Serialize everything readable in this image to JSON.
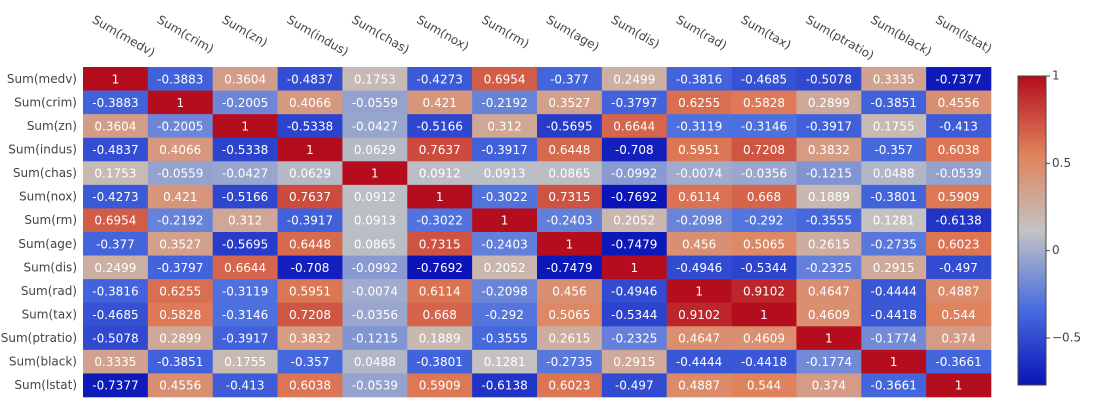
{
  "chart_data": {
    "type": "heatmap",
    "title": "",
    "xlabel": "",
    "ylabel": "",
    "x_categories": [
      "Sum(medv)",
      "Sum(crim)",
      "Sum(zn)",
      "Sum(indus)",
      "Sum(chas)",
      "Sum(nox)",
      "Sum(rm)",
      "Sum(age)",
      "Sum(dis)",
      "Sum(rad)",
      "Sum(tax)",
      "Sum(ptratio)",
      "Sum(black)",
      "Sum(lstat)"
    ],
    "y_categories": [
      "Sum(medv)",
      "Sum(crim)",
      "Sum(zn)",
      "Sum(indus)",
      "Sum(chas)",
      "Sum(nox)",
      "Sum(rm)",
      "Sum(age)",
      "Sum(dis)",
      "Sum(rad)",
      "Sum(tax)",
      "Sum(ptratio)",
      "Sum(black)",
      "Sum(lstat)"
    ],
    "values": [
      [
        1,
        -0.3883,
        0.3604,
        -0.4837,
        0.1753,
        -0.4273,
        0.6954,
        -0.377,
        0.2499,
        -0.3816,
        -0.4685,
        -0.5078,
        0.3335,
        -0.7377
      ],
      [
        -0.3883,
        1,
        -0.2005,
        0.4066,
        -0.0559,
        0.421,
        -0.2192,
        0.3527,
        -0.3797,
        0.6255,
        0.5828,
        0.2899,
        -0.3851,
        0.4556
      ],
      [
        0.3604,
        -0.2005,
        1,
        -0.5338,
        -0.0427,
        -0.5166,
        0.312,
        -0.5695,
        0.6644,
        -0.3119,
        -0.3146,
        -0.3917,
        0.1755,
        -0.413
      ],
      [
        -0.4837,
        0.4066,
        -0.5338,
        1,
        0.0629,
        0.7637,
        -0.3917,
        0.6448,
        -0.708,
        0.5951,
        0.7208,
        0.3832,
        -0.357,
        0.6038
      ],
      [
        0.1753,
        -0.0559,
        -0.0427,
        0.0629,
        1,
        0.0912,
        0.0913,
        0.0865,
        -0.0992,
        -0.0074,
        -0.0356,
        -0.1215,
        0.0488,
        -0.0539
      ],
      [
        -0.4273,
        0.421,
        -0.5166,
        0.7637,
        0.0912,
        1,
        -0.3022,
        0.7315,
        -0.7692,
        0.6114,
        0.668,
        0.1889,
        -0.3801,
        0.5909
      ],
      [
        0.6954,
        -0.2192,
        0.312,
        -0.3917,
        0.0913,
        -0.3022,
        1,
        -0.2403,
        0.2052,
        -0.2098,
        -0.292,
        -0.3555,
        0.1281,
        -0.6138
      ],
      [
        -0.377,
        0.3527,
        -0.5695,
        0.6448,
        0.0865,
        0.7315,
        -0.2403,
        1,
        -0.7479,
        0.456,
        0.5065,
        0.2615,
        -0.2735,
        0.6023
      ],
      [
        0.2499,
        -0.3797,
        0.6644,
        -0.708,
        -0.0992,
        -0.7692,
        0.2052,
        -0.7479,
        1,
        -0.4946,
        -0.5344,
        -0.2325,
        0.2915,
        -0.497
      ],
      [
        -0.3816,
        0.6255,
        -0.3119,
        0.5951,
        -0.0074,
        0.6114,
        -0.2098,
        0.456,
        -0.4946,
        1,
        0.9102,
        0.4647,
        -0.4444,
        0.4887
      ],
      [
        -0.4685,
        0.5828,
        -0.3146,
        0.7208,
        -0.0356,
        0.668,
        -0.292,
        0.5065,
        -0.5344,
        0.9102,
        1,
        0.4609,
        -0.4418,
        0.544
      ],
      [
        -0.5078,
        0.2899,
        -0.3917,
        0.3832,
        -0.1215,
        0.1889,
        -0.3555,
        0.2615,
        -0.2325,
        0.4647,
        0.4609,
        1,
        -0.1774,
        0.374
      ],
      [
        0.3335,
        -0.3851,
        0.1755,
        -0.357,
        0.0488,
        -0.3801,
        0.1281,
        -0.2735,
        0.2915,
        -0.4444,
        -0.4418,
        -0.1774,
        1,
        -0.3661
      ],
      [
        -0.7377,
        0.4556,
        -0.413,
        0.6038,
        -0.0539,
        0.5909,
        -0.6138,
        0.6023,
        -0.497,
        0.4887,
        0.544,
        0.374,
        -0.3661,
        1
      ]
    ],
    "colorscale": {
      "name": "coolwarm",
      "stops": [
        "#0a14b8",
        "#4a6ee0",
        "#c3c3c3",
        "#e0815a",
        "#b40d1e"
      ],
      "zmin": -0.7692,
      "zmax": 1
    },
    "colorbar": {
      "ticks": [
        1,
        0.5,
        0,
        -0.5
      ],
      "tick_labels": [
        "1",
        "0.5",
        "0",
        "−0.5"
      ]
    },
    "grid": false,
    "legend": "colorbar-right"
  }
}
